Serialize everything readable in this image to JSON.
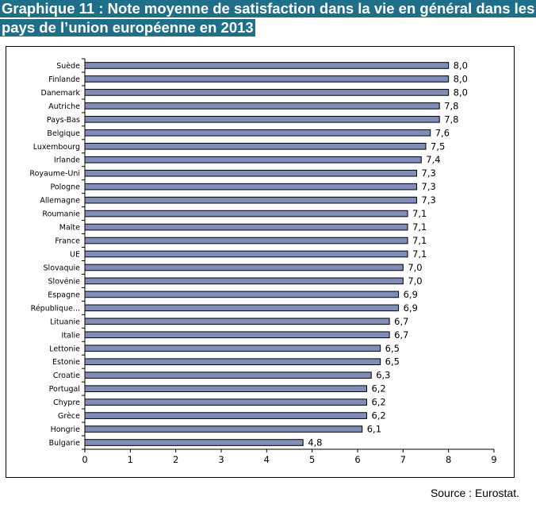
{
  "title_line1": "Graphique 11 : Note moyenne de satisfaction dans la vie en général dans les",
  "title_line2": "pays de l’union européenne en 2013",
  "source": "Source : Eurostat.",
  "colors": {
    "title_bg": "#1f6e8a",
    "bar_fill": "#7f8db8",
    "bar_stroke": "#000000"
  },
  "chart_data": {
    "type": "bar",
    "orientation": "horizontal",
    "categories": [
      "Suède",
      "Finlande",
      "Danemark",
      "Autriche",
      "Pays-Bas",
      "Belgique",
      "Luxembourg",
      "Irlande",
      "Royaume-Uni",
      "Pologne",
      "Allemagne",
      "Roumanie",
      "Malte",
      "France",
      "UE",
      "Slovaquie",
      "Slovénie",
      "Espagne",
      "République...",
      "Lituanie",
      "Italie",
      "Lettonie",
      "Estonie",
      "Croatie",
      "Portugal",
      "Chypre",
      "Grèce",
      "Hongrie",
      "Bulgarie"
    ],
    "values": [
      8.0,
      8.0,
      8.0,
      7.8,
      7.8,
      7.6,
      7.5,
      7.4,
      7.3,
      7.3,
      7.3,
      7.1,
      7.1,
      7.1,
      7.1,
      7.0,
      7.0,
      6.9,
      6.9,
      6.7,
      6.7,
      6.5,
      6.5,
      6.3,
      6.2,
      6.2,
      6.2,
      6.1,
      4.8
    ],
    "value_labels": [
      "8,0",
      "8,0",
      "8,0",
      "7,8",
      "7,8",
      "7,6",
      "7,5",
      "7,4",
      "7,3",
      "7,3",
      "7,3",
      "7,1",
      "7,1",
      "7,1",
      "7,1",
      "7,0",
      "7,0",
      "6,9",
      "6,9",
      "6,7",
      "6,7",
      "6,5",
      "6,5",
      "6,3",
      "6,2",
      "6,2",
      "6,2",
      "6,1",
      "4,8"
    ],
    "xlim": [
      0,
      9
    ],
    "xticks": [
      0,
      1,
      2,
      3,
      4,
      5,
      6,
      7,
      8,
      9
    ],
    "grid": false,
    "legend": "none"
  }
}
